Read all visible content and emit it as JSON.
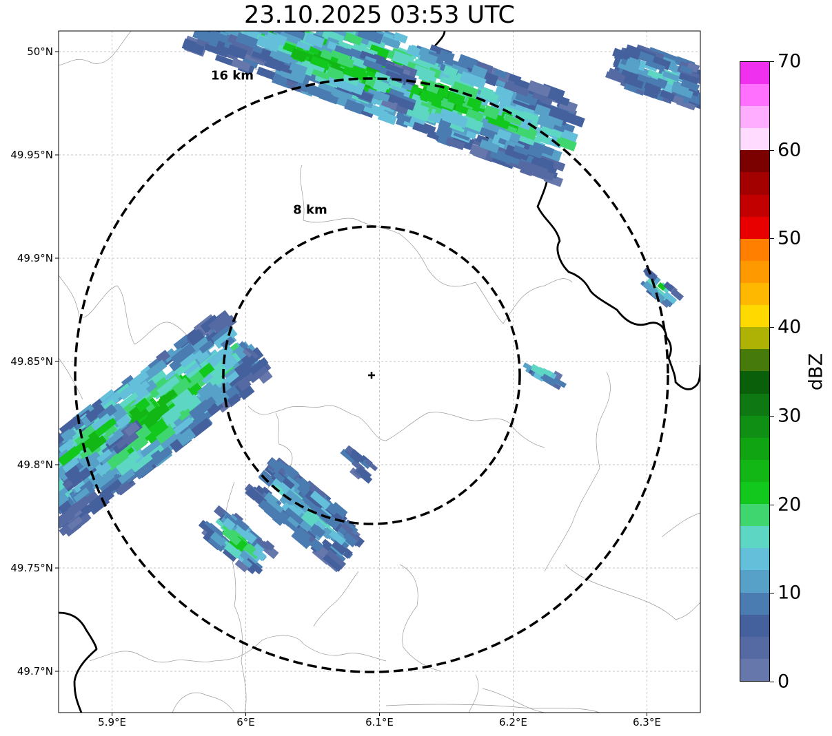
{
  "title": "23.10.2025 03:53 UTC",
  "map": {
    "lon_range": [
      5.86,
      6.34
    ],
    "lat_range": [
      49.68,
      50.01
    ],
    "radar_site": {
      "lon": 6.095,
      "lat": 49.843
    },
    "grid": true,
    "lat_ticks": [
      {
        "value": 50.0,
        "label": "50°N"
      },
      {
        "value": 49.95,
        "label": "49.95°N"
      },
      {
        "value": 49.9,
        "label": "49.9°N"
      },
      {
        "value": 49.85,
        "label": "49.85°N"
      },
      {
        "value": 49.8,
        "label": "49.8°N"
      },
      {
        "value": 49.75,
        "label": "49.75°N"
      },
      {
        "value": 49.7,
        "label": "49.7°N"
      }
    ],
    "lon_ticks": [
      {
        "value": 5.9,
        "label": "5.9°E"
      },
      {
        "value": 6.0,
        "label": "6°E"
      },
      {
        "value": 6.1,
        "label": "6.1°E"
      },
      {
        "value": 6.2,
        "label": "6.2°E"
      },
      {
        "value": 6.3,
        "label": "6.3°E"
      }
    ],
    "range_rings": [
      {
        "radius_km": 8,
        "label": "8 km"
      },
      {
        "radius_km": 16,
        "label": "16 km"
      }
    ]
  },
  "colorbar": {
    "unit": "dBZ",
    "min": 0,
    "max": 70,
    "tick_labels": [
      "0",
      "10",
      "20",
      "30",
      "40",
      "50",
      "60",
      "70"
    ],
    "colors": [
      "#6577ab",
      "#5569a3",
      "#44609d",
      "#4a7cb2",
      "#57a0c8",
      "#63bfda",
      "#5dd6c3",
      "#3fd670",
      "#12c81d",
      "#12b716",
      "#10a312",
      "#0f8f13",
      "#0e7812",
      "#095f0a",
      "#467a0b",
      "#aeb205",
      "#ffd900",
      "#ffb800",
      "#ff9900",
      "#ff8000",
      "#e80000",
      "#c30000",
      "#a30000",
      "#7b0000",
      "#ffdcff",
      "#ffaeff",
      "#ff70ff",
      "#ef31ef"
    ]
  }
}
